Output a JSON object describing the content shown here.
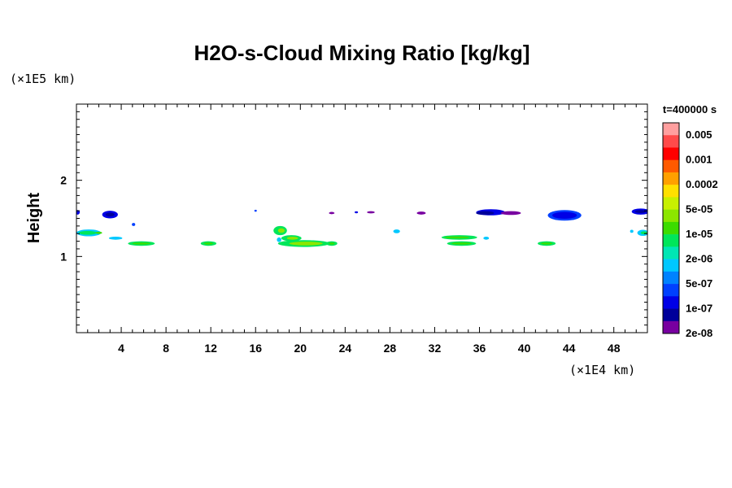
{
  "chart_data": {
    "type": "heatmap",
    "title": "H2O-s-Cloud Mixing Ratio [kg/kg]",
    "ylabel": "Height",
    "x_unit_label": "(×1E4 km)",
    "y_unit_label": "(×1E5 km)",
    "time_label": "t=400000 s",
    "xlim": [
      0,
      51
    ],
    "ylim": [
      0,
      3
    ],
    "x_ticks": [
      4,
      8,
      12,
      16,
      20,
      24,
      28,
      32,
      36,
      40,
      44,
      48
    ],
    "x_tick_labels": [
      "4",
      "8",
      "12",
      "16",
      "20",
      "24",
      "28",
      "32",
      "36",
      "40",
      "44",
      "48"
    ],
    "y_ticks": [
      1,
      2
    ],
    "y_tick_labels": [
      "1",
      "2"
    ],
    "colorbar": {
      "colors": [
        "#ff9f9f",
        "#ff4a4a",
        "#ff0000",
        "#ff5a00",
        "#ffa000",
        "#ffe000",
        "#c8f000",
        "#8ce600",
        "#3cdc00",
        "#00e65a",
        "#00e6b4",
        "#00c8ff",
        "#0082ff",
        "#0040ff",
        "#0000e6",
        "#00009a",
        "#7800a0"
      ],
      "labels": [
        "0.005",
        "0.001",
        "0.0002",
        "5e-05",
        "1e-05",
        "2e-06",
        "5e-07",
        "1e-07",
        "2e-08"
      ]
    },
    "cloud_features": [
      {
        "x": 0.1,
        "y": 1.58,
        "rx": 0.2,
        "ry": 0.03,
        "color": "#0000e6"
      },
      {
        "x": 3.0,
        "y": 1.55,
        "rx": 0.7,
        "ry": 0.05,
        "color": "#0000e6"
      },
      {
        "x": 3.0,
        "y": 1.55,
        "rx": 0.4,
        "ry": 0.025,
        "color": "#00009a"
      },
      {
        "x": 5.1,
        "y": 1.42,
        "rx": 0.15,
        "ry": 0.02,
        "color": "#0040ff"
      },
      {
        "x": 16.0,
        "y": 1.6,
        "rx": 0.1,
        "ry": 0.01,
        "color": "#0040ff"
      },
      {
        "x": 22.8,
        "y": 1.57,
        "rx": 0.25,
        "ry": 0.015,
        "color": "#7800a0"
      },
      {
        "x": 25.0,
        "y": 1.58,
        "rx": 0.15,
        "ry": 0.012,
        "color": "#0000e6"
      },
      {
        "x": 26.3,
        "y": 1.58,
        "rx": 0.35,
        "ry": 0.015,
        "color": "#7800a0"
      },
      {
        "x": 30.8,
        "y": 1.57,
        "rx": 0.4,
        "ry": 0.02,
        "color": "#7800a0"
      },
      {
        "x": 37.0,
        "y": 1.58,
        "rx": 1.3,
        "ry": 0.04,
        "color": "#0000e6"
      },
      {
        "x": 36.5,
        "y": 1.57,
        "rx": 0.8,
        "ry": 0.025,
        "color": "#00009a"
      },
      {
        "x": 38.8,
        "y": 1.57,
        "rx": 0.9,
        "ry": 0.025,
        "color": "#7800a0"
      },
      {
        "x": 43.6,
        "y": 1.54,
        "rx": 1.5,
        "ry": 0.07,
        "color": "#0040ff"
      },
      {
        "x": 43.6,
        "y": 1.54,
        "rx": 1.1,
        "ry": 0.045,
        "color": "#0000e6"
      },
      {
        "x": 50.4,
        "y": 1.59,
        "rx": 0.8,
        "ry": 0.04,
        "color": "#0000e6"
      },
      {
        "x": 50.4,
        "y": 1.59,
        "rx": 0.5,
        "ry": 0.02,
        "color": "#00009a"
      },
      {
        "x": 1.1,
        "y": 1.31,
        "rx": 1.1,
        "ry": 0.045,
        "color": "#00c8ff"
      },
      {
        "x": 1.0,
        "y": 1.31,
        "rx": 0.8,
        "ry": 0.025,
        "color": "#00e65a"
      },
      {
        "x": 2.0,
        "y": 1.31,
        "rx": 0.3,
        "ry": 0.015,
        "color": "#3cdc00"
      },
      {
        "x": 3.5,
        "y": 1.24,
        "rx": 0.6,
        "ry": 0.02,
        "color": "#00c8ff"
      },
      {
        "x": 5.8,
        "y": 1.17,
        "rx": 1.2,
        "ry": 0.03,
        "color": "#00e65a"
      },
      {
        "x": 5.8,
        "y": 1.17,
        "rx": 0.8,
        "ry": 0.013,
        "color": "#3cdc00"
      },
      {
        "x": 11.8,
        "y": 1.17,
        "rx": 0.7,
        "ry": 0.03,
        "color": "#00e65a"
      },
      {
        "x": 11.8,
        "y": 1.17,
        "rx": 0.4,
        "ry": 0.012,
        "color": "#3cdc00"
      },
      {
        "x": 18.2,
        "y": 1.34,
        "rx": 0.6,
        "ry": 0.06,
        "color": "#00e65a"
      },
      {
        "x": 18.3,
        "y": 1.34,
        "rx": 0.3,
        "ry": 0.03,
        "color": "#8ce600"
      },
      {
        "x": 18.1,
        "y": 1.22,
        "rx": 0.2,
        "ry": 0.03,
        "color": "#00c8ff"
      },
      {
        "x": 19.2,
        "y": 1.24,
        "rx": 0.9,
        "ry": 0.04,
        "color": "#00e65a"
      },
      {
        "x": 19.3,
        "y": 1.24,
        "rx": 0.5,
        "ry": 0.02,
        "color": "#8ce600"
      },
      {
        "x": 20.3,
        "y": 1.17,
        "rx": 2.3,
        "ry": 0.045,
        "color": "#00e65a"
      },
      {
        "x": 20.5,
        "y": 1.17,
        "rx": 1.5,
        "ry": 0.025,
        "color": "#8ce600"
      },
      {
        "x": 22.8,
        "y": 1.17,
        "rx": 0.5,
        "ry": 0.03,
        "color": "#00e65a"
      },
      {
        "x": 22.8,
        "y": 1.17,
        "rx": 0.25,
        "ry": 0.012,
        "color": "#3cdc00"
      },
      {
        "x": 28.6,
        "y": 1.33,
        "rx": 0.3,
        "ry": 0.025,
        "color": "#00c8ff"
      },
      {
        "x": 34.2,
        "y": 1.25,
        "rx": 1.6,
        "ry": 0.03,
        "color": "#00e65a"
      },
      {
        "x": 34.0,
        "y": 1.25,
        "rx": 1.1,
        "ry": 0.013,
        "color": "#3cdc00"
      },
      {
        "x": 36.6,
        "y": 1.24,
        "rx": 0.25,
        "ry": 0.02,
        "color": "#00c8ff"
      },
      {
        "x": 34.4,
        "y": 1.17,
        "rx": 1.3,
        "ry": 0.03,
        "color": "#00e65a"
      },
      {
        "x": 34.4,
        "y": 1.17,
        "rx": 0.9,
        "ry": 0.012,
        "color": "#3cdc00"
      },
      {
        "x": 42.0,
        "y": 1.17,
        "rx": 0.8,
        "ry": 0.03,
        "color": "#00e65a"
      },
      {
        "x": 42.0,
        "y": 1.17,
        "rx": 0.5,
        "ry": 0.012,
        "color": "#3cdc00"
      },
      {
        "x": 49.6,
        "y": 1.33,
        "rx": 0.15,
        "ry": 0.02,
        "color": "#00c8ff"
      },
      {
        "x": 50.6,
        "y": 1.31,
        "rx": 0.5,
        "ry": 0.04,
        "color": "#00c8ff"
      },
      {
        "x": 50.7,
        "y": 1.31,
        "rx": 0.3,
        "ry": 0.02,
        "color": "#00e65a"
      }
    ]
  }
}
